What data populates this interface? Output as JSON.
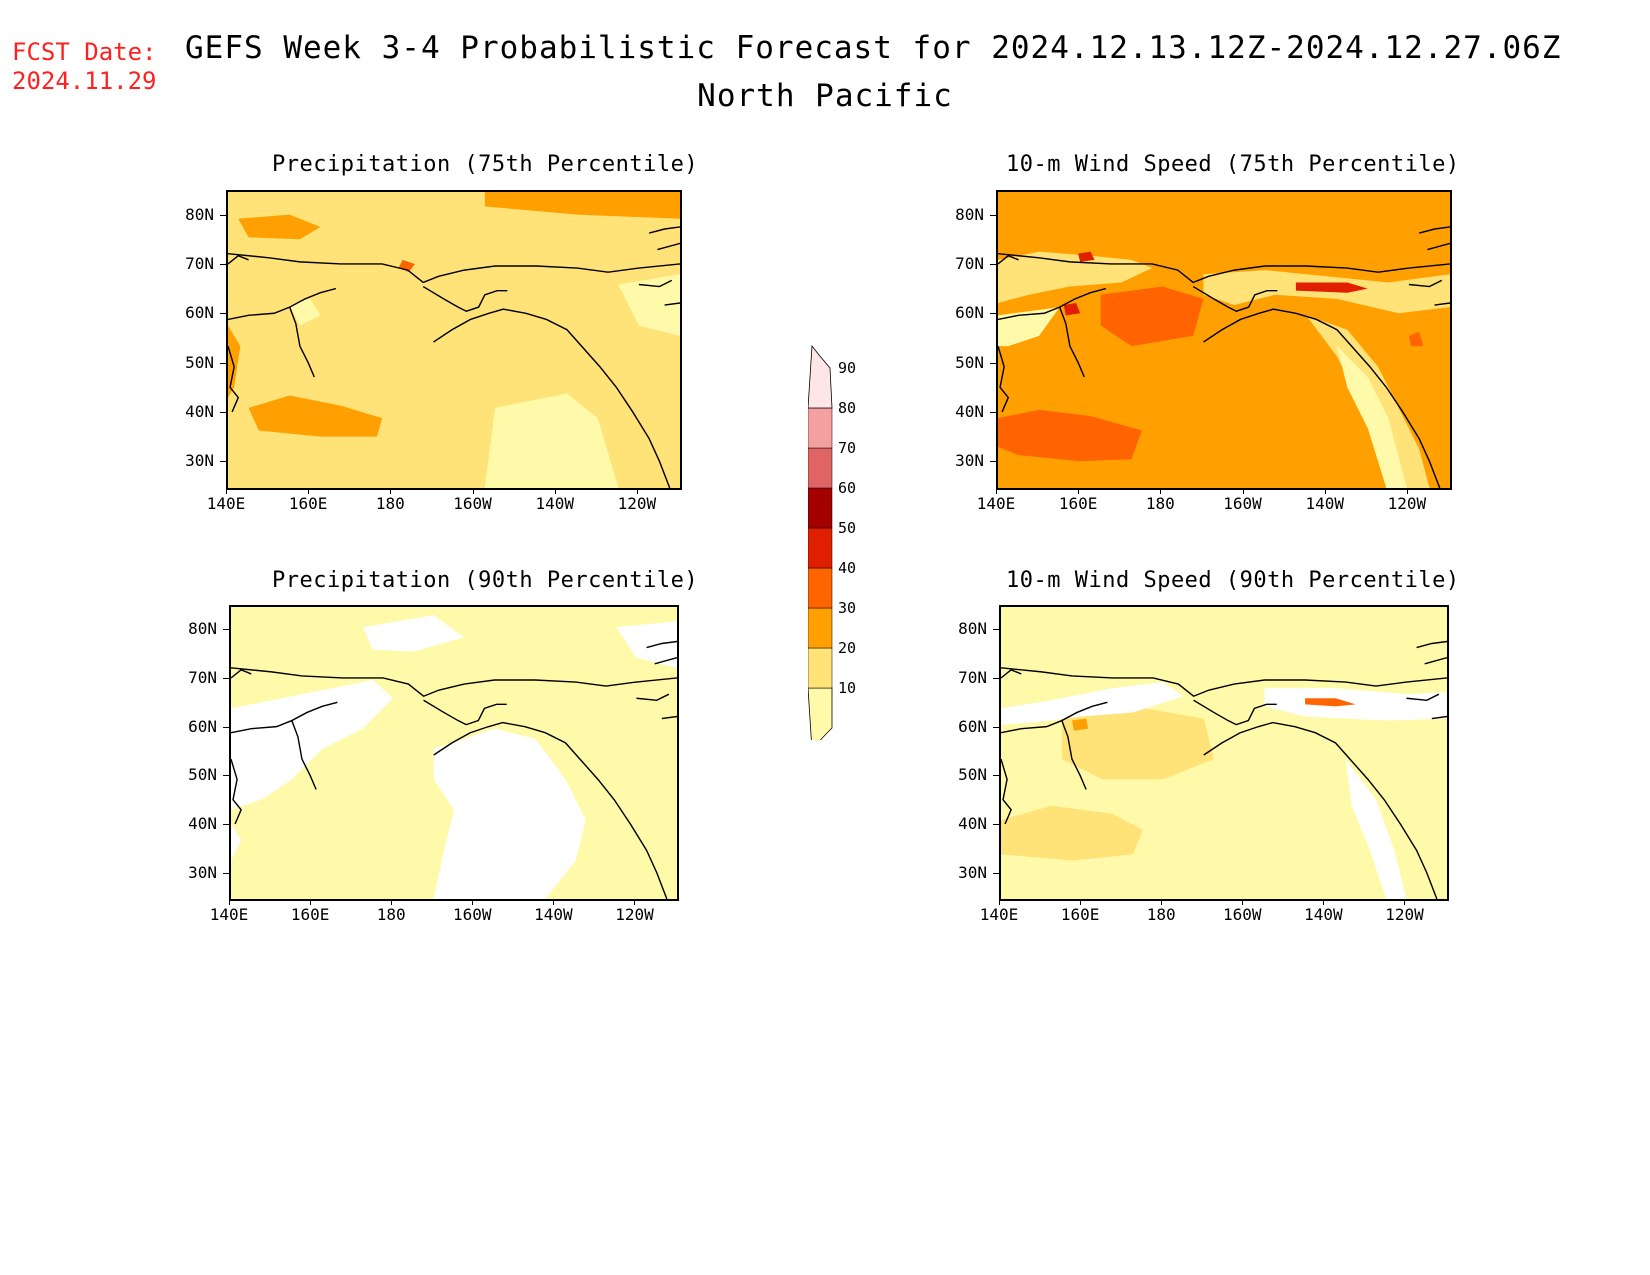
{
  "header": {
    "fcst_label": "FCST Date:",
    "fcst_date": "2024.11.29",
    "title": "GEFS Week 3-4 Probabilistic Forecast for 2024.12.13.12Z-2024.12.27.06Z",
    "region": "North Pacific"
  },
  "panels": [
    {
      "id": "p75",
      "title": "Precipitation (75th Percentile)"
    },
    {
      "id": "w75",
      "title": "10-m Wind Speed (75th Percentile)"
    },
    {
      "id": "p90",
      "title": "Precipitation (90th Percentile)"
    },
    {
      "id": "w90",
      "title": "10-m Wind Speed (90th Percentile)"
    }
  ],
  "axes": {
    "lat_labels": [
      "80N",
      "70N",
      "60N",
      "50N",
      "40N",
      "30N"
    ],
    "lon_labels": [
      "140E",
      "160E",
      "180",
      "160W",
      "140W",
      "120W"
    ]
  },
  "colorbar": {
    "levels": [
      "10",
      "20",
      "30",
      "40",
      "50",
      "60",
      "70",
      "80",
      "90"
    ],
    "colors": [
      "#fffaaa",
      "#ffe278",
      "#ffa000",
      "#ff6400",
      "#e01e00",
      "#a50000",
      "#e06464",
      "#f5a0a0",
      "#ffe6e6"
    ]
  }
}
